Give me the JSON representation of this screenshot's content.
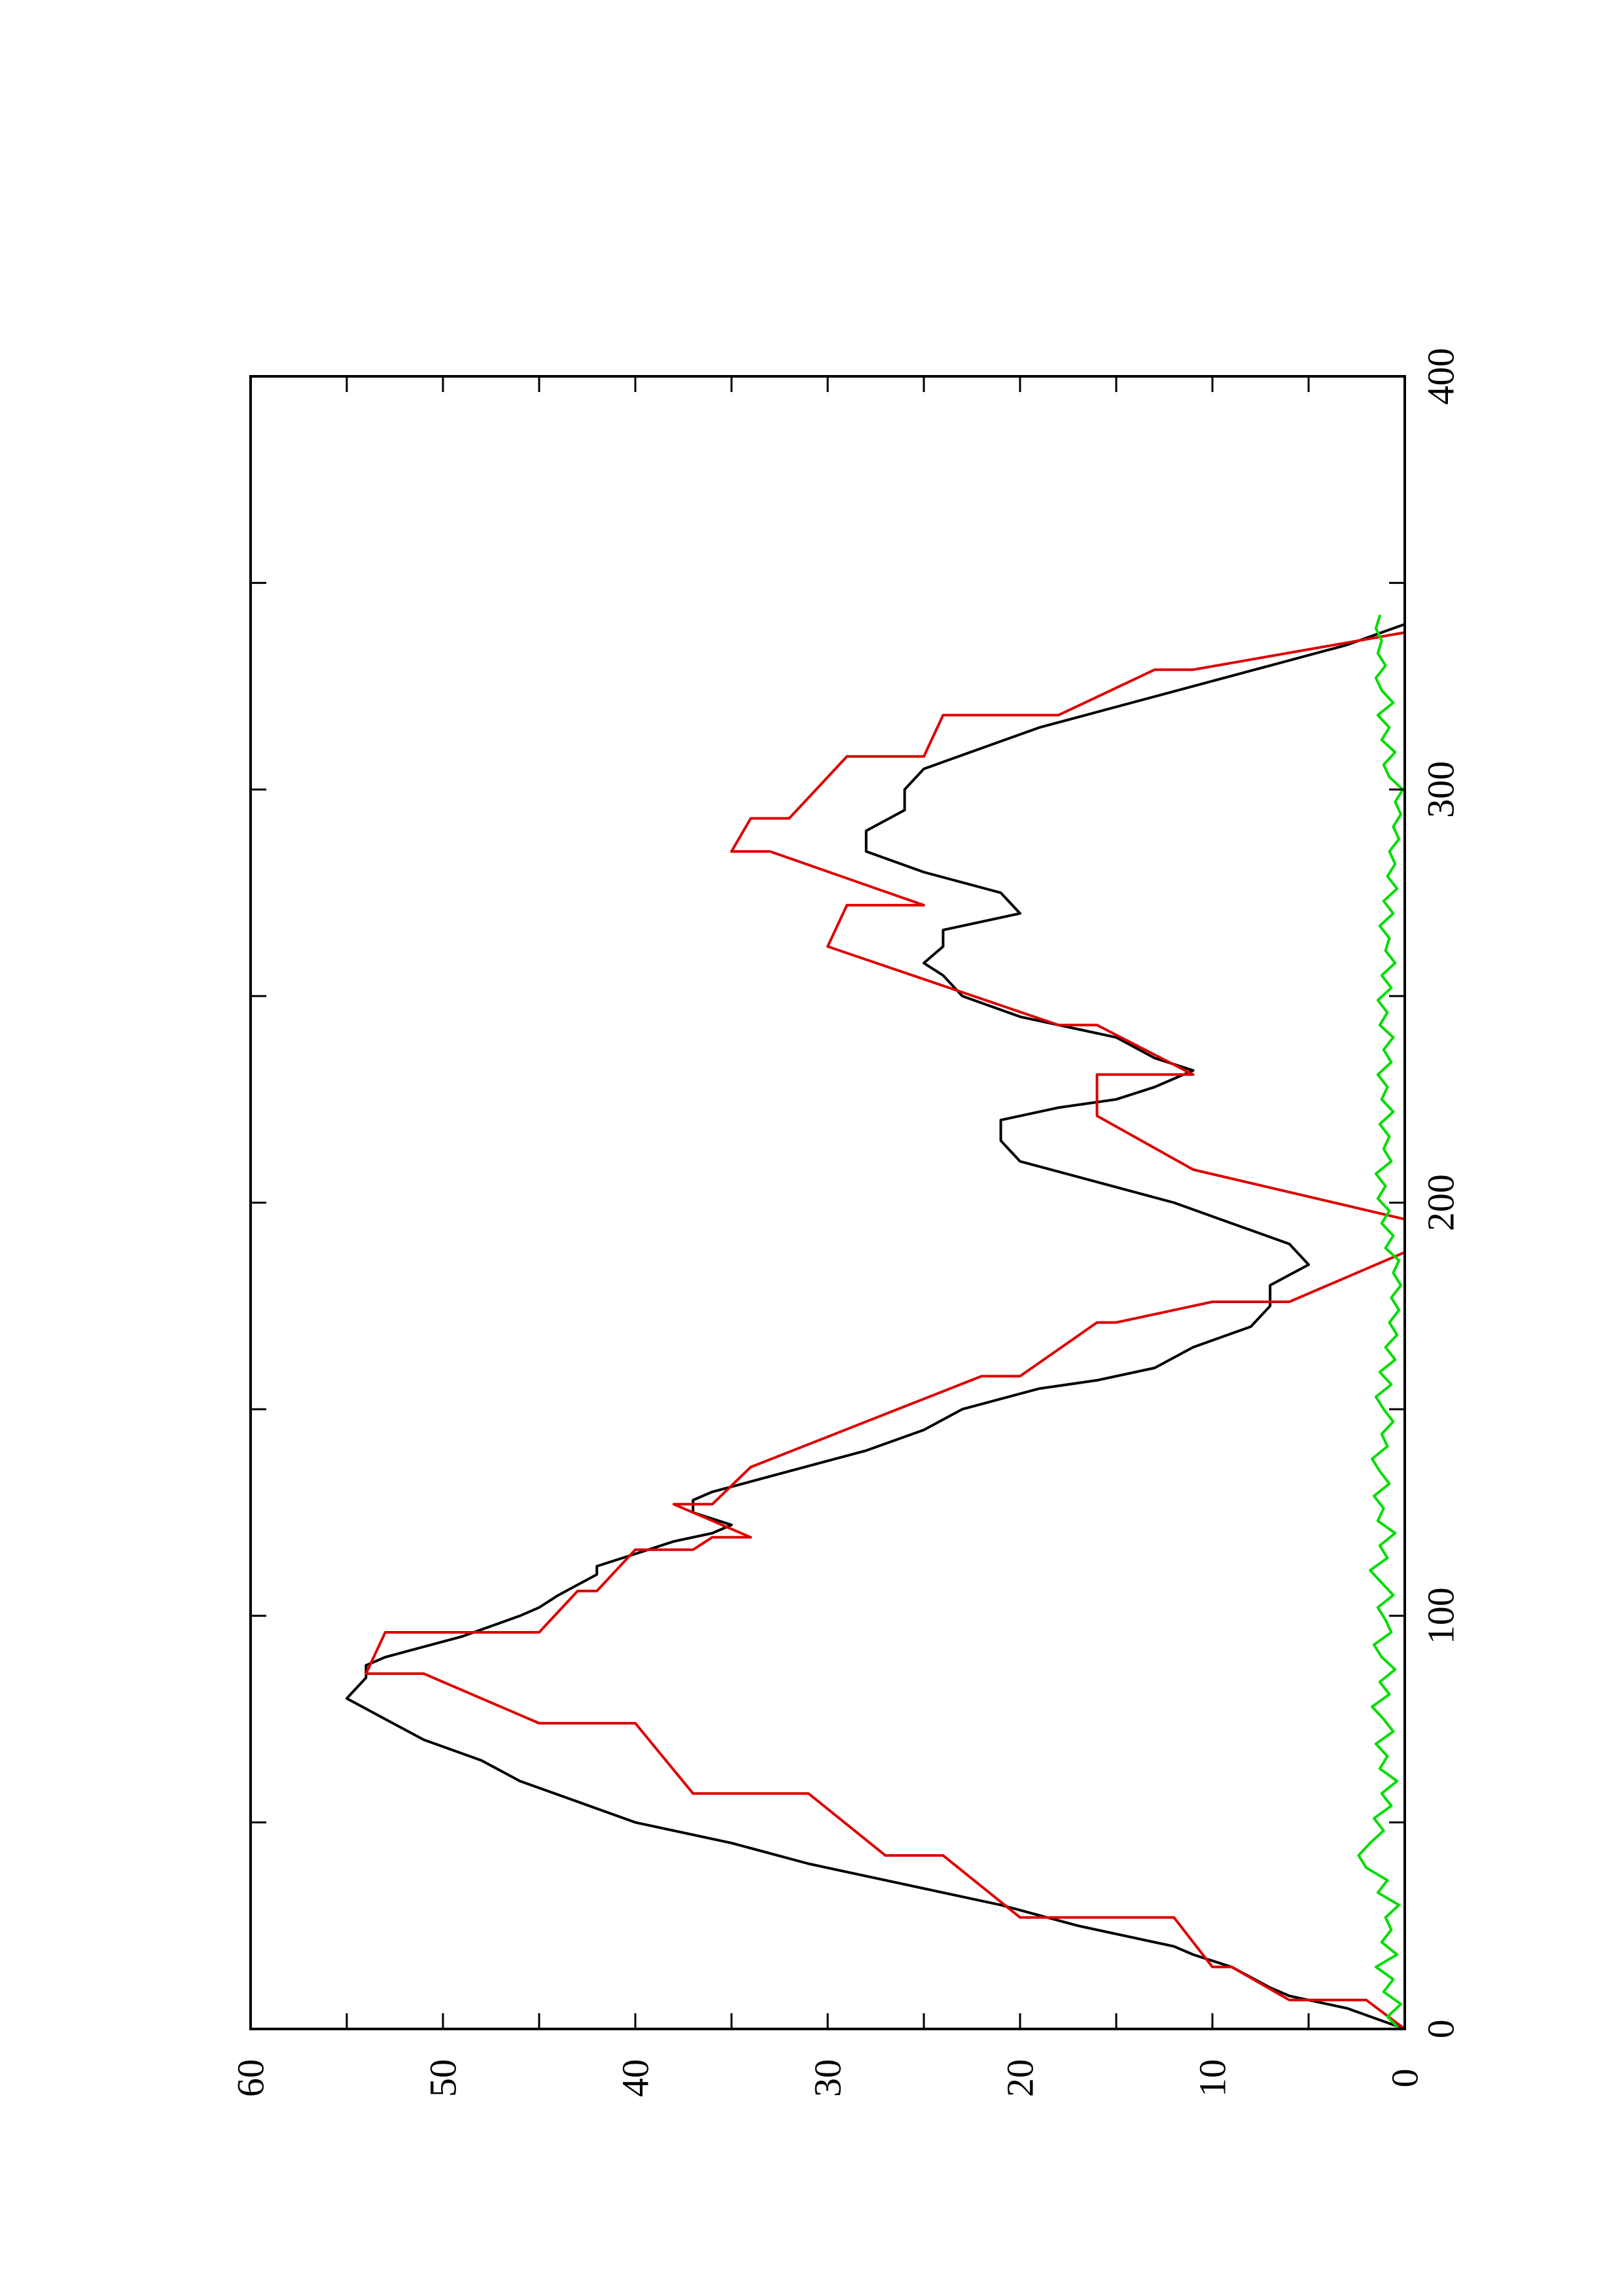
{
  "chart_data": {
    "type": "line",
    "orientation": "rotated-90-ccw",
    "title": "",
    "xlabel": "",
    "ylabel": "",
    "xlim": [
      0,
      400
    ],
    "ylim": [
      0,
      60
    ],
    "x_ticks": [
      "0",
      "100",
      "200",
      "300",
      "400"
    ],
    "y_ticks": [
      "0",
      "10",
      "20",
      "30",
      "40",
      "50",
      "60"
    ],
    "grid": false,
    "colors": {
      "series_a": "#000000",
      "series_b": "#dd0000",
      "series_c": "#00dd00"
    },
    "series": [
      {
        "color": "#000000",
        "x": [
          0,
          5,
          8,
          10,
          15,
          18,
          20,
          25,
          30,
          35,
          40,
          45,
          50,
          55,
          60,
          65,
          70,
          75,
          80,
          85,
          88,
          90,
          95,
          100,
          102,
          105,
          110,
          112,
          115,
          118,
          120,
          122,
          125,
          128,
          130,
          135,
          140,
          145,
          150,
          155,
          157,
          160,
          165,
          170,
          175,
          180,
          185,
          190,
          195,
          200,
          205,
          210,
          215,
          220,
          223,
          225,
          228,
          232,
          235,
          240,
          245,
          250,
          255,
          258,
          262,
          266,
          270,
          275,
          280,
          285,
          290,
          295,
          300,
          305,
          310,
          315,
          320,
          325,
          330,
          335,
          340
        ],
        "y": [
          0,
          3,
          6,
          7,
          9,
          11,
          12,
          17,
          21,
          26,
          31,
          35,
          40,
          43,
          46,
          48,
          51,
          53,
          55,
          54,
          54,
          53,
          49,
          46,
          45,
          44,
          42,
          42,
          40,
          38,
          36,
          35,
          37,
          37,
          36,
          32,
          28,
          25,
          23,
          19,
          16,
          13,
          11,
          8,
          7,
          7,
          5,
          6,
          9,
          12,
          16,
          20,
          21,
          21,
          18,
          15,
          13,
          11,
          13,
          15,
          20,
          23,
          24,
          25,
          24,
          24,
          20,
          21,
          25,
          28,
          28,
          26,
          26,
          25,
          22,
          19,
          15,
          11,
          7,
          3,
          0
        ]
      },
      {
        "color": "#dd0000",
        "x": [
          0,
          7,
          7,
          15,
          15,
          27,
          27,
          42,
          42,
          57,
          57,
          74,
          74,
          86,
          86,
          96,
          96,
          106,
          106,
          116,
          116,
          119,
          119,
          127,
          127,
          136,
          136,
          158,
          158,
          171,
          171,
          176,
          176,
          188,
          188,
          196,
          196,
          208,
          208,
          221,
          221,
          231,
          231,
          243,
          243,
          262,
          262,
          272,
          272,
          285,
          285,
          293,
          293,
          308,
          308,
          318,
          318,
          329,
          329,
          338
        ],
        "y": [
          0,
          2,
          6,
          9,
          10,
          12,
          20,
          24,
          27,
          31,
          37,
          40,
          45,
          51,
          54,
          53,
          45,
          43,
          42,
          40,
          37,
          36,
          34,
          38,
          36,
          34,
          34,
          22,
          20,
          16,
          15,
          10,
          6,
          0,
          0,
          0,
          0,
          11,
          11,
          16,
          16,
          16,
          11,
          16,
          18,
          30,
          30,
          29,
          25,
          33,
          35,
          34,
          32,
          29,
          25,
          24,
          18,
          13,
          11,
          0
        ]
      },
      {
        "color": "#00dd00",
        "x": [
          0,
          3,
          6,
          9,
          12,
          15,
          18,
          21,
          24,
          27,
          30,
          33,
          36,
          39,
          42,
          45,
          48,
          51,
          54,
          57,
          60,
          63,
          66,
          69,
          72,
          75,
          78,
          81,
          84,
          87,
          90,
          93,
          96,
          99,
          102,
          105,
          108,
          111,
          114,
          117,
          120,
          123,
          126,
          129,
          132,
          135,
          138,
          141,
          144,
          147,
          150,
          153,
          156,
          159,
          162,
          165,
          168,
          171,
          174,
          177,
          180,
          183,
          186,
          189,
          192,
          195,
          198,
          201,
          204,
          207,
          210,
          213,
          216,
          219,
          222,
          225,
          228,
          231,
          234,
          237,
          240,
          243,
          246,
          249,
          252,
          255,
          258,
          261,
          264,
          267,
          270,
          273,
          276,
          279,
          282,
          285,
          288,
          291,
          294,
          297,
          300,
          303,
          306,
          309,
          312,
          315,
          318,
          321,
          324,
          327,
          330,
          333,
          336,
          339,
          342
        ],
        "y": [
          0.3,
          0.9,
          0.2,
          1.1,
          0.6,
          1.5,
          0.4,
          1.2,
          0.7,
          1.0,
          0.3,
          1.4,
          0.9,
          2.0,
          2.4,
          1.8,
          1.1,
          1.6,
          0.7,
          1.2,
          0.4,
          1.3,
          0.9,
          1.5,
          0.6,
          1.1,
          1.7,
          0.8,
          1.3,
          0.5,
          1.2,
          1.6,
          0.7,
          1.0,
          1.4,
          0.6,
          1.2,
          1.8,
          0.9,
          1.3,
          0.5,
          1.4,
          1.1,
          1.6,
          0.8,
          1.3,
          1.7,
          0.9,
          1.2,
          0.6,
          1.1,
          1.5,
          0.7,
          1.3,
          0.5,
          1.0,
          0.4,
          0.8,
          0.3,
          0.7,
          0.2,
          0.6,
          0.3,
          1.0,
          0.6,
          1.2,
          0.8,
          1.4,
          1.0,
          1.5,
          0.7,
          1.1,
          0.8,
          1.3,
          0.6,
          1.2,
          0.9,
          1.4,
          0.7,
          1.1,
          0.6,
          1.3,
          0.9,
          1.4,
          0.7,
          1.2,
          0.5,
          1.0,
          0.8,
          1.3,
          0.6,
          1.1,
          0.4,
          0.9,
          0.5,
          0.8,
          0.3,
          0.6,
          0.2,
          0.5,
          0.1,
          0.8,
          1.1,
          0.5,
          1.2,
          0.8,
          1.4,
          0.6,
          1.2,
          1.5,
          1.0,
          1.4,
          1.2,
          1.5,
          1.3
        ]
      }
    ]
  }
}
